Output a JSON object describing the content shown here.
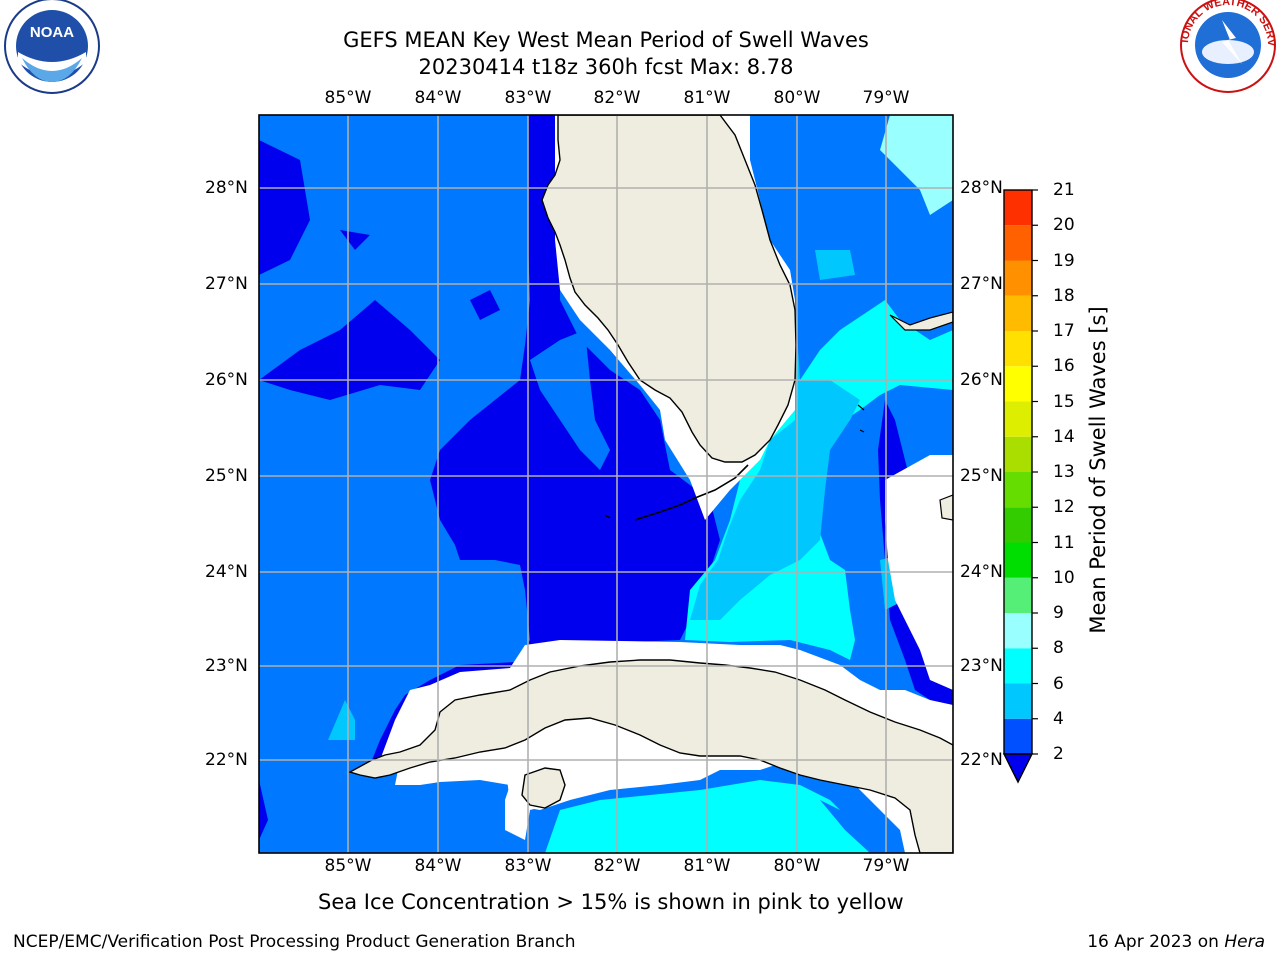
{
  "header": {
    "title_line1": "GEFS MEAN Key West Mean Period of Swell Waves",
    "title_line2": "20230414 t18z 360h fcst   Max: 8.78"
  },
  "map": {
    "lon_labels": [
      "85°W",
      "84°W",
      "83°W",
      "82°W",
      "81°W",
      "80°W",
      "79°W"
    ],
    "lat_labels": [
      "28°N",
      "27°N",
      "26°N",
      "25°N",
      "24°N",
      "23°N",
      "22°N"
    ],
    "colors": {
      "land": "#eeeddf",
      "dark_blue": "#0000ee",
      "blue": "#0078ff",
      "light_blue": "#00c8ff",
      "cyan": "#00ffff",
      "pale_cyan": "#99ffff",
      "grid": "#b0b0b0"
    }
  },
  "colorbar": {
    "title": "Mean Period of Swell Waves [s]",
    "tick_labels": [
      "2",
      "4",
      "6",
      "8",
      "9",
      "10",
      "11",
      "12",
      "13",
      "14",
      "15",
      "16",
      "17",
      "18",
      "19",
      "20",
      "21"
    ],
    "colors": [
      "#0050ff",
      "#00c8ff",
      "#00ffff",
      "#99ffff",
      "#55ee77",
      "#00dd00",
      "#33cc00",
      "#66dd00",
      "#aadd00",
      "#ddee00",
      "#ffff00",
      "#ffe000",
      "#ffbb00",
      "#ff9000",
      "#ff6000",
      "#ff3000",
      "#ff0000"
    ]
  },
  "logos": {
    "noaa_text": "NOAA",
    "nws_text": "NATIONAL WEATHER SERVICE"
  },
  "footer": {
    "note": "Sea Ice Concentration > 15% is shown in pink to yellow",
    "left": "NCEP/EMC/Verification Post Processing Product Generation Branch",
    "right_prefix": "16 Apr 2023 on ",
    "right_host": "Hera"
  }
}
